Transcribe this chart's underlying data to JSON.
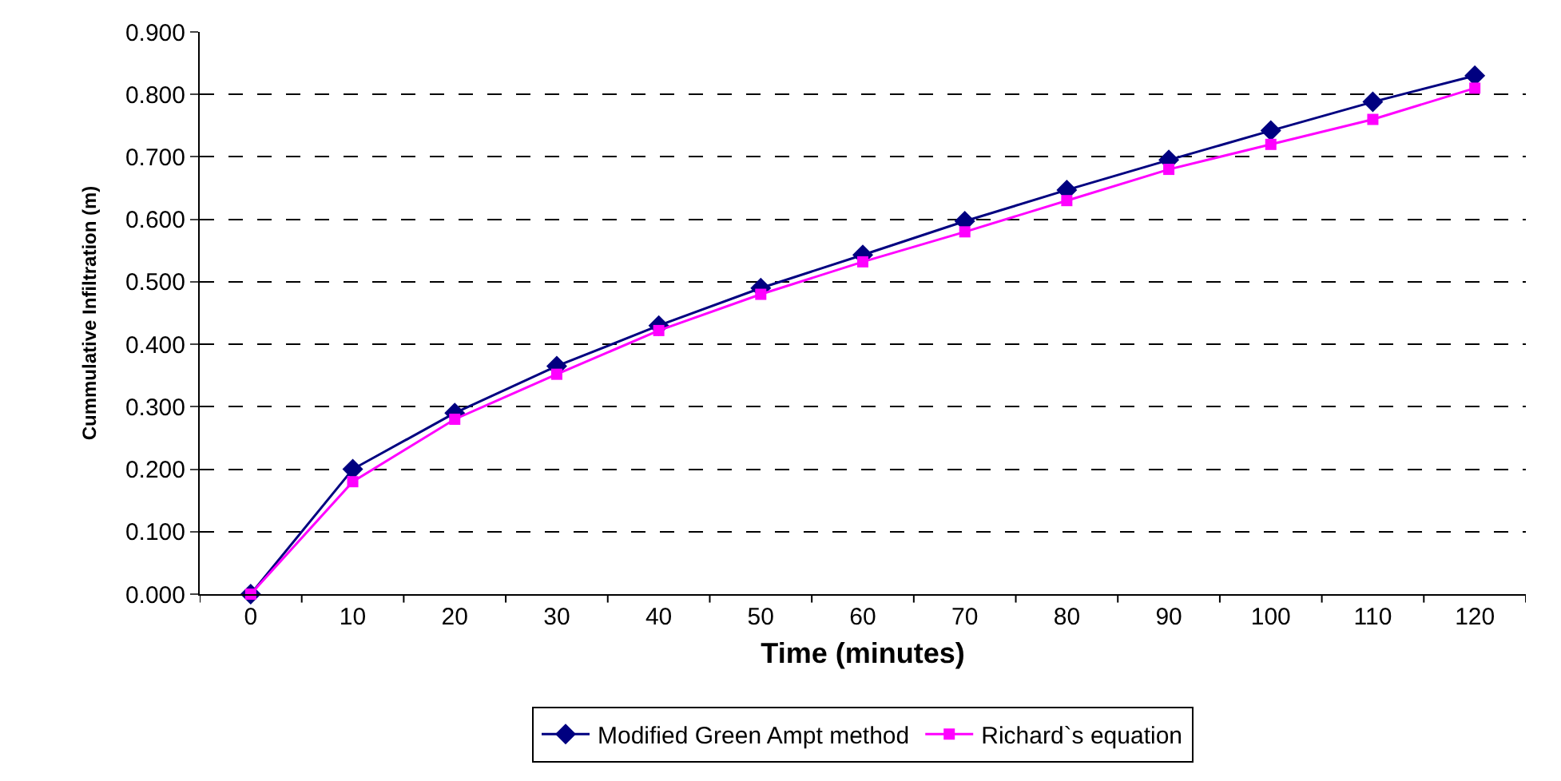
{
  "chart_data": {
    "type": "line",
    "xlabel": "Time (minutes)",
    "ylabel": "Cummulative Infiltration (m)",
    "categories": [
      "0",
      "10",
      "20",
      "30",
      "40",
      "50",
      "60",
      "70",
      "80",
      "90",
      "100",
      "110",
      "120"
    ],
    "series": [
      {
        "name": "Modified Green Ampt method",
        "color": "#000080",
        "marker": "diamond",
        "values": [
          0,
          0.2,
          0.29,
          0.365,
          0.43,
          0.49,
          0.543,
          0.597,
          0.647,
          0.695,
          0.742,
          0.788,
          0.83
        ]
      },
      {
        "name": "Richard`s equation",
        "color": "#ff00ff",
        "marker": "square",
        "values": [
          0,
          0.18,
          0.28,
          0.352,
          0.422,
          0.48,
          0.532,
          0.58,
          0.63,
          0.68,
          0.72,
          0.76,
          0.81
        ]
      }
    ],
    "ylim": [
      0,
      0.9
    ],
    "yticks": [
      {
        "value": 0,
        "label": "0.000"
      },
      {
        "value": 0.1,
        "label": "0.100"
      },
      {
        "value": 0.2,
        "label": "0.200"
      },
      {
        "value": 0.3,
        "label": "0.300"
      },
      {
        "value": 0.4,
        "label": "0.400"
      },
      {
        "value": 0.5,
        "label": "0.500"
      },
      {
        "value": 0.6,
        "label": "0.600"
      },
      {
        "value": 0.7,
        "label": "0.700"
      },
      {
        "value": 0.8,
        "label": "0.800"
      },
      {
        "value": 0.9,
        "label": "0.900"
      }
    ],
    "grid": "y",
    "line_style": "solid",
    "legend": "bottom"
  }
}
